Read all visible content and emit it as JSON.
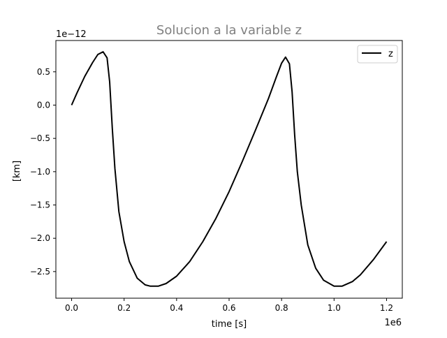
{
  "chart_data": {
    "type": "line",
    "title": "Solucion a la variable z",
    "title_color": "#808080",
    "xlabel": "time [s]",
    "ylabel": "[km]",
    "x_offset_label": "1e6",
    "y_offset_label": "1e−12",
    "xlim": [
      -0.06,
      1.26
    ],
    "ylim": [
      -2.9,
      0.97
    ],
    "x_ticks": [
      0.0,
      0.2,
      0.4,
      0.6,
      0.8,
      1.0,
      1.2
    ],
    "x_tick_labels": [
      "0.0",
      "0.2",
      "0.4",
      "0.6",
      "0.8",
      "1.0",
      "1.2"
    ],
    "y_ticks": [
      0.5,
      0.0,
      -0.5,
      -1.0,
      -1.5,
      -2.0,
      -2.5
    ],
    "y_tick_labels": [
      "0.5",
      "0.0",
      "−0.5",
      "−1.0",
      "−1.5",
      "−2.0",
      "−2.5"
    ],
    "grid": false,
    "legend_position": "top-right",
    "series": [
      {
        "name": "z",
        "color": "#000000",
        "x": [
          0.0,
          0.02,
          0.05,
          0.08,
          0.1,
          0.12,
          0.135,
          0.145,
          0.155,
          0.165,
          0.18,
          0.2,
          0.22,
          0.25,
          0.28,
          0.3,
          0.33,
          0.36,
          0.4,
          0.45,
          0.5,
          0.55,
          0.6,
          0.65,
          0.7,
          0.75,
          0.78,
          0.8,
          0.815,
          0.83,
          0.84,
          0.85,
          0.86,
          0.875,
          0.9,
          0.93,
          0.96,
          1.0,
          1.03,
          1.07,
          1.1,
          1.15,
          1.2
        ],
        "values": [
          0.0,
          0.18,
          0.43,
          0.64,
          0.76,
          0.8,
          0.71,
          0.35,
          -0.35,
          -0.95,
          -1.6,
          -2.05,
          -2.35,
          -2.6,
          -2.7,
          -2.72,
          -2.72,
          -2.68,
          -2.57,
          -2.35,
          -2.05,
          -1.7,
          -1.3,
          -0.85,
          -0.38,
          0.1,
          0.42,
          0.63,
          0.72,
          0.62,
          0.2,
          -0.45,
          -1.0,
          -1.5,
          -2.1,
          -2.45,
          -2.63,
          -2.72,
          -2.72,
          -2.65,
          -2.55,
          -2.32,
          -2.05
        ]
      }
    ]
  }
}
